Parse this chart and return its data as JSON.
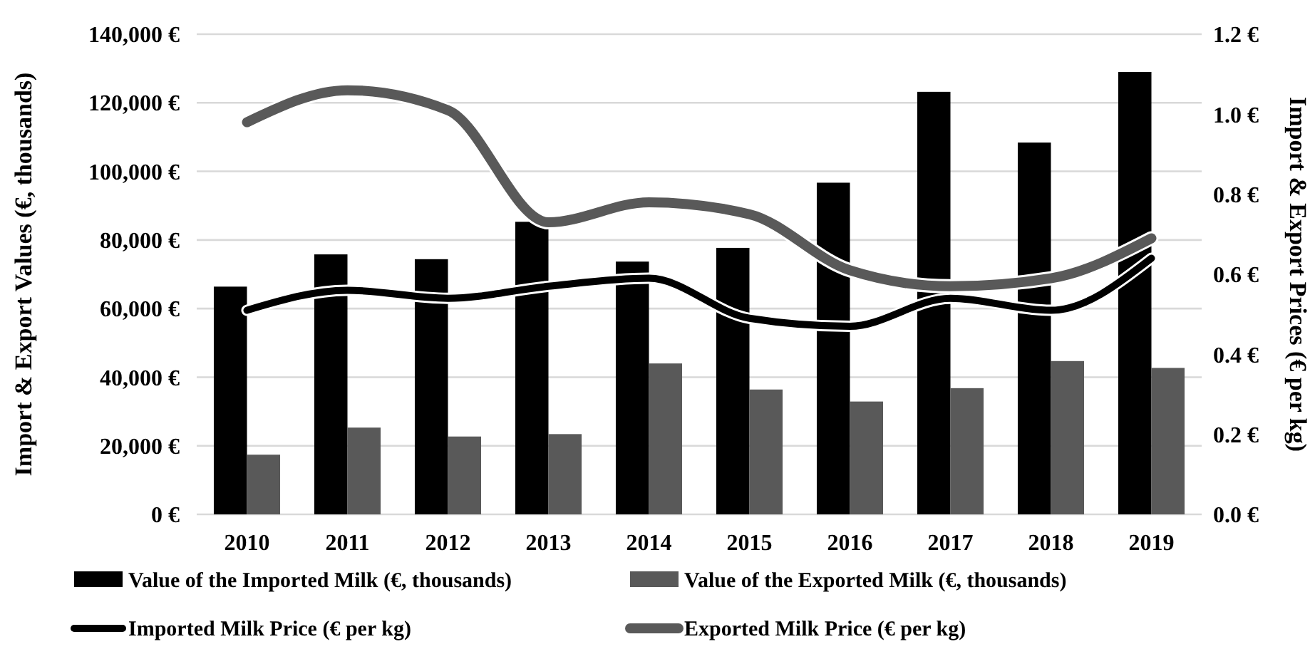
{
  "chart_data": {
    "type": "bar",
    "categories": [
      "2010",
      "2011",
      "2012",
      "2013",
      "2014",
      "2015",
      "2016",
      "2017",
      "2018",
      "2019"
    ],
    "ylabel": "Import & Export Values (€, thousands)",
    "y2label": "Import & Export Prices (€ per kg)",
    "ylim": [
      0,
      140000
    ],
    "yticks": [
      {
        "value": 0,
        "label": "0 €"
      },
      {
        "value": 20000,
        "label": "20,000 €"
      },
      {
        "value": 40000,
        "label": "40,000 €"
      },
      {
        "value": 60000,
        "label": "60,000 €"
      },
      {
        "value": 80000,
        "label": "80,000 €"
      },
      {
        "value": 100000,
        "label": "100,000 €"
      },
      {
        "value": 120000,
        "label": "120,000 €"
      },
      {
        "value": 140000,
        "label": "140,000 €"
      }
    ],
    "y2lim": [
      0,
      1.2
    ],
    "y2ticks": [
      {
        "value": 0,
        "label": "0.0 €"
      },
      {
        "value": 0.2,
        "label": "0.2 €"
      },
      {
        "value": 0.4,
        "label": "0.4 €"
      },
      {
        "value": 0.6,
        "label": "0.6 €"
      },
      {
        "value": 0.8,
        "label": "0.8 €"
      },
      {
        "value": 1.0,
        "label": "1.0 €"
      },
      {
        "value": 1.2,
        "label": "1.2 €"
      }
    ],
    "grid": "y",
    "legend": "bottom",
    "marker": "none",
    "series": [
      {
        "name": "Value of the Imported Milk (€, thousands)",
        "color": "#000000",
        "values": [
          66400,
          75800,
          74400,
          85300,
          73700,
          77700,
          96700,
          123200,
          108400,
          129000
        ]
      },
      {
        "name": "Value of the Exported Milk (€, thousands)",
        "color": "#595959",
        "values": [
          17400,
          25300,
          22700,
          23400,
          44000,
          36400,
          32900,
          36800,
          44700,
          42700
        ]
      },
      {
        "name": "Imported Milk Price (€ per kg)",
        "type": "line",
        "axis": "y2",
        "color": "#000000",
        "values": [
          0.51,
          0.56,
          0.54,
          0.57,
          0.59,
          0.49,
          0.47,
          0.54,
          0.51,
          0.64
        ]
      },
      {
        "name": "Exported Milk Price (€ per kg)",
        "type": "line",
        "axis": "y2",
        "color": "#595959",
        "values": [
          0.98,
          1.06,
          1.01,
          0.73,
          0.78,
          0.75,
          0.61,
          0.57,
          0.59,
          0.69
        ]
      }
    ]
  }
}
